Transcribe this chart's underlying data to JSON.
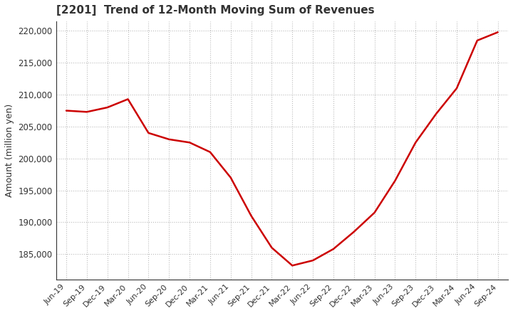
{
  "title": "[2201]  Trend of 12-Month Moving Sum of Revenues",
  "ylabel": "Amount (million yen)",
  "line_color": "#cc0000",
  "background_color": "#ffffff",
  "grid_color": "#bbbbbb",
  "ylim": [
    181000,
    221500
  ],
  "yticks": [
    185000,
    190000,
    195000,
    200000,
    205000,
    210000,
    215000,
    220000
  ],
  "x_labels": [
    "Jun-19",
    "Sep-19",
    "Dec-19",
    "Mar-20",
    "Jun-20",
    "Sep-20",
    "Dec-20",
    "Mar-21",
    "Jun-21",
    "Sep-21",
    "Dec-21",
    "Mar-22",
    "Jun-22",
    "Sep-22",
    "Dec-22",
    "Mar-23",
    "Jun-23",
    "Sep-23",
    "Dec-23",
    "Mar-24",
    "Jun-24",
    "Sep-24"
  ],
  "values": [
    207500,
    207300,
    208000,
    209300,
    204000,
    203000,
    202500,
    201000,
    197000,
    191000,
    186000,
    183200,
    184000,
    185800,
    188500,
    191500,
    196500,
    202500,
    207000,
    211000,
    218500,
    219800
  ]
}
